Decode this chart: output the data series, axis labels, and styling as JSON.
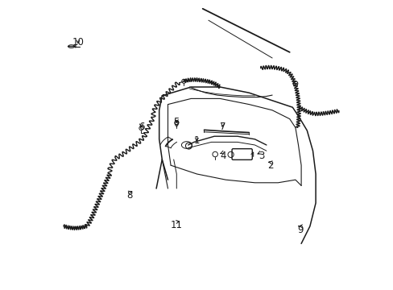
{
  "bg_color": "#ffffff",
  "line_color": "#1a1a1a",
  "fig_width": 4.89,
  "fig_height": 3.6,
  "dpi": 100,
  "label_fontsize": 8.5,
  "labels": {
    "1": [
      0.5,
      0.515,
      0.52,
      0.5
    ],
    "2": [
      0.755,
      0.43,
      0.74,
      0.44
    ],
    "3": [
      0.72,
      0.465,
      0.7,
      0.465
    ],
    "4": [
      0.59,
      0.465,
      0.57,
      0.47
    ],
    "5": [
      0.43,
      0.58,
      0.43,
      0.565
    ],
    "6": [
      0.31,
      0.565,
      0.305,
      0.55
    ],
    "7": [
      0.59,
      0.565,
      0.58,
      0.555
    ],
    "8": [
      0.27,
      0.325,
      0.28,
      0.34
    ],
    "9": [
      0.86,
      0.21,
      0.858,
      0.225
    ],
    "10": [
      0.09,
      0.855,
      0.09,
      0.84
    ],
    "11": [
      0.43,
      0.225,
      0.448,
      0.24
    ]
  }
}
